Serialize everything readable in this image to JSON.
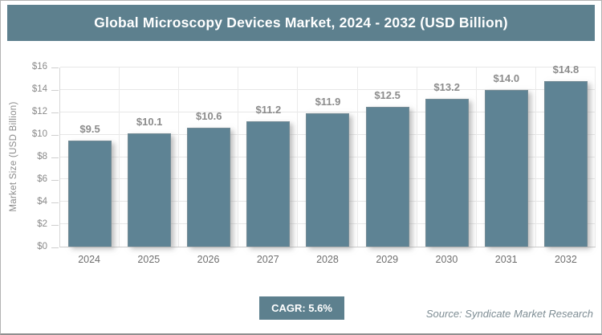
{
  "header": {
    "title": "Global Microscopy Devices Market, 2024 - 2032 (USD Billion)"
  },
  "chart_data": {
    "type": "bar",
    "title": "Global Microscopy Devices Market, 2024 - 2032 (USD Billion)",
    "categories": [
      "2024",
      "2025",
      "2026",
      "2027",
      "2028",
      "2029",
      "2030",
      "2031",
      "2032"
    ],
    "values": [
      9.5,
      10.1,
      10.6,
      11.2,
      11.9,
      12.5,
      13.2,
      14.0,
      14.8
    ],
    "value_labels": [
      "$9.5",
      "$10.1",
      "$10.6",
      "$11.2",
      "$11.9",
      "$12.5",
      "$13.2",
      "$14.0",
      "$14.8"
    ],
    "xlabel": "",
    "ylabel": "Market Size (USD Billion)",
    "ylim": [
      0,
      16
    ],
    "ytick_step": 2,
    "ytick_labels": [
      "$16",
      "$14",
      "$12",
      "$10",
      "$8",
      "$6",
      "$4",
      "$2",
      "$0"
    ],
    "grid": true,
    "legend": "none",
    "bar_color": "#5e8394"
  },
  "footer": {
    "cagr_label": "CAGR: 5.6%",
    "source": "Source: Syndicate Market Research"
  },
  "colors": {
    "accent_teal": "#5d808e",
    "bar_fill": "#5e8394",
    "value_label_gray": "#8c8c8c",
    "axis_text_gray": "#8a8a8a",
    "source_gray": "#7e8d94",
    "gridline": "#e7e7e7",
    "background": "#ffffff"
  }
}
